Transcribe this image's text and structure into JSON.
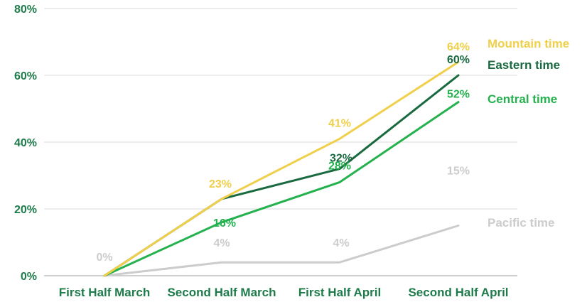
{
  "chart_data": {
    "type": "line",
    "categories": [
      "First Half March",
      "Second Half March",
      "First Half April",
      "Second Half April"
    ],
    "ylim": [
      0,
      80
    ],
    "yticks": [
      0,
      20,
      40,
      60,
      80
    ],
    "ytick_labels": [
      "0%",
      "20%",
      "40%",
      "60%",
      "80%"
    ],
    "grid": true,
    "legend_placement": "right, next to line ends",
    "colors": {
      "axis_text": "#1e7b4a",
      "grid": "#d9d9d9",
      "axis_line": "#bfbfbf"
    },
    "series": [
      {
        "name": "Mountain time",
        "color": "#f0cf4a",
        "values": [
          0,
          23,
          41,
          64
        ],
        "labels": [
          "",
          "23%",
          "41%",
          "64%"
        ]
      },
      {
        "name": "Eastern time",
        "color": "#1a6a40",
        "values": [
          0,
          23,
          32,
          60
        ],
        "labels": [
          "",
          "",
          "32%",
          "60%"
        ]
      },
      {
        "name": "Central time",
        "color": "#24b14e",
        "values": [
          0,
          16,
          28,
          52
        ],
        "labels": [
          "",
          "16%",
          "28%",
          "52%"
        ]
      },
      {
        "name": "Pacific time",
        "color": "#cccccc",
        "values": [
          0,
          4,
          4,
          15
        ],
        "labels": [
          "0%",
          "4%",
          "4%",
          "15%"
        ]
      }
    ]
  }
}
